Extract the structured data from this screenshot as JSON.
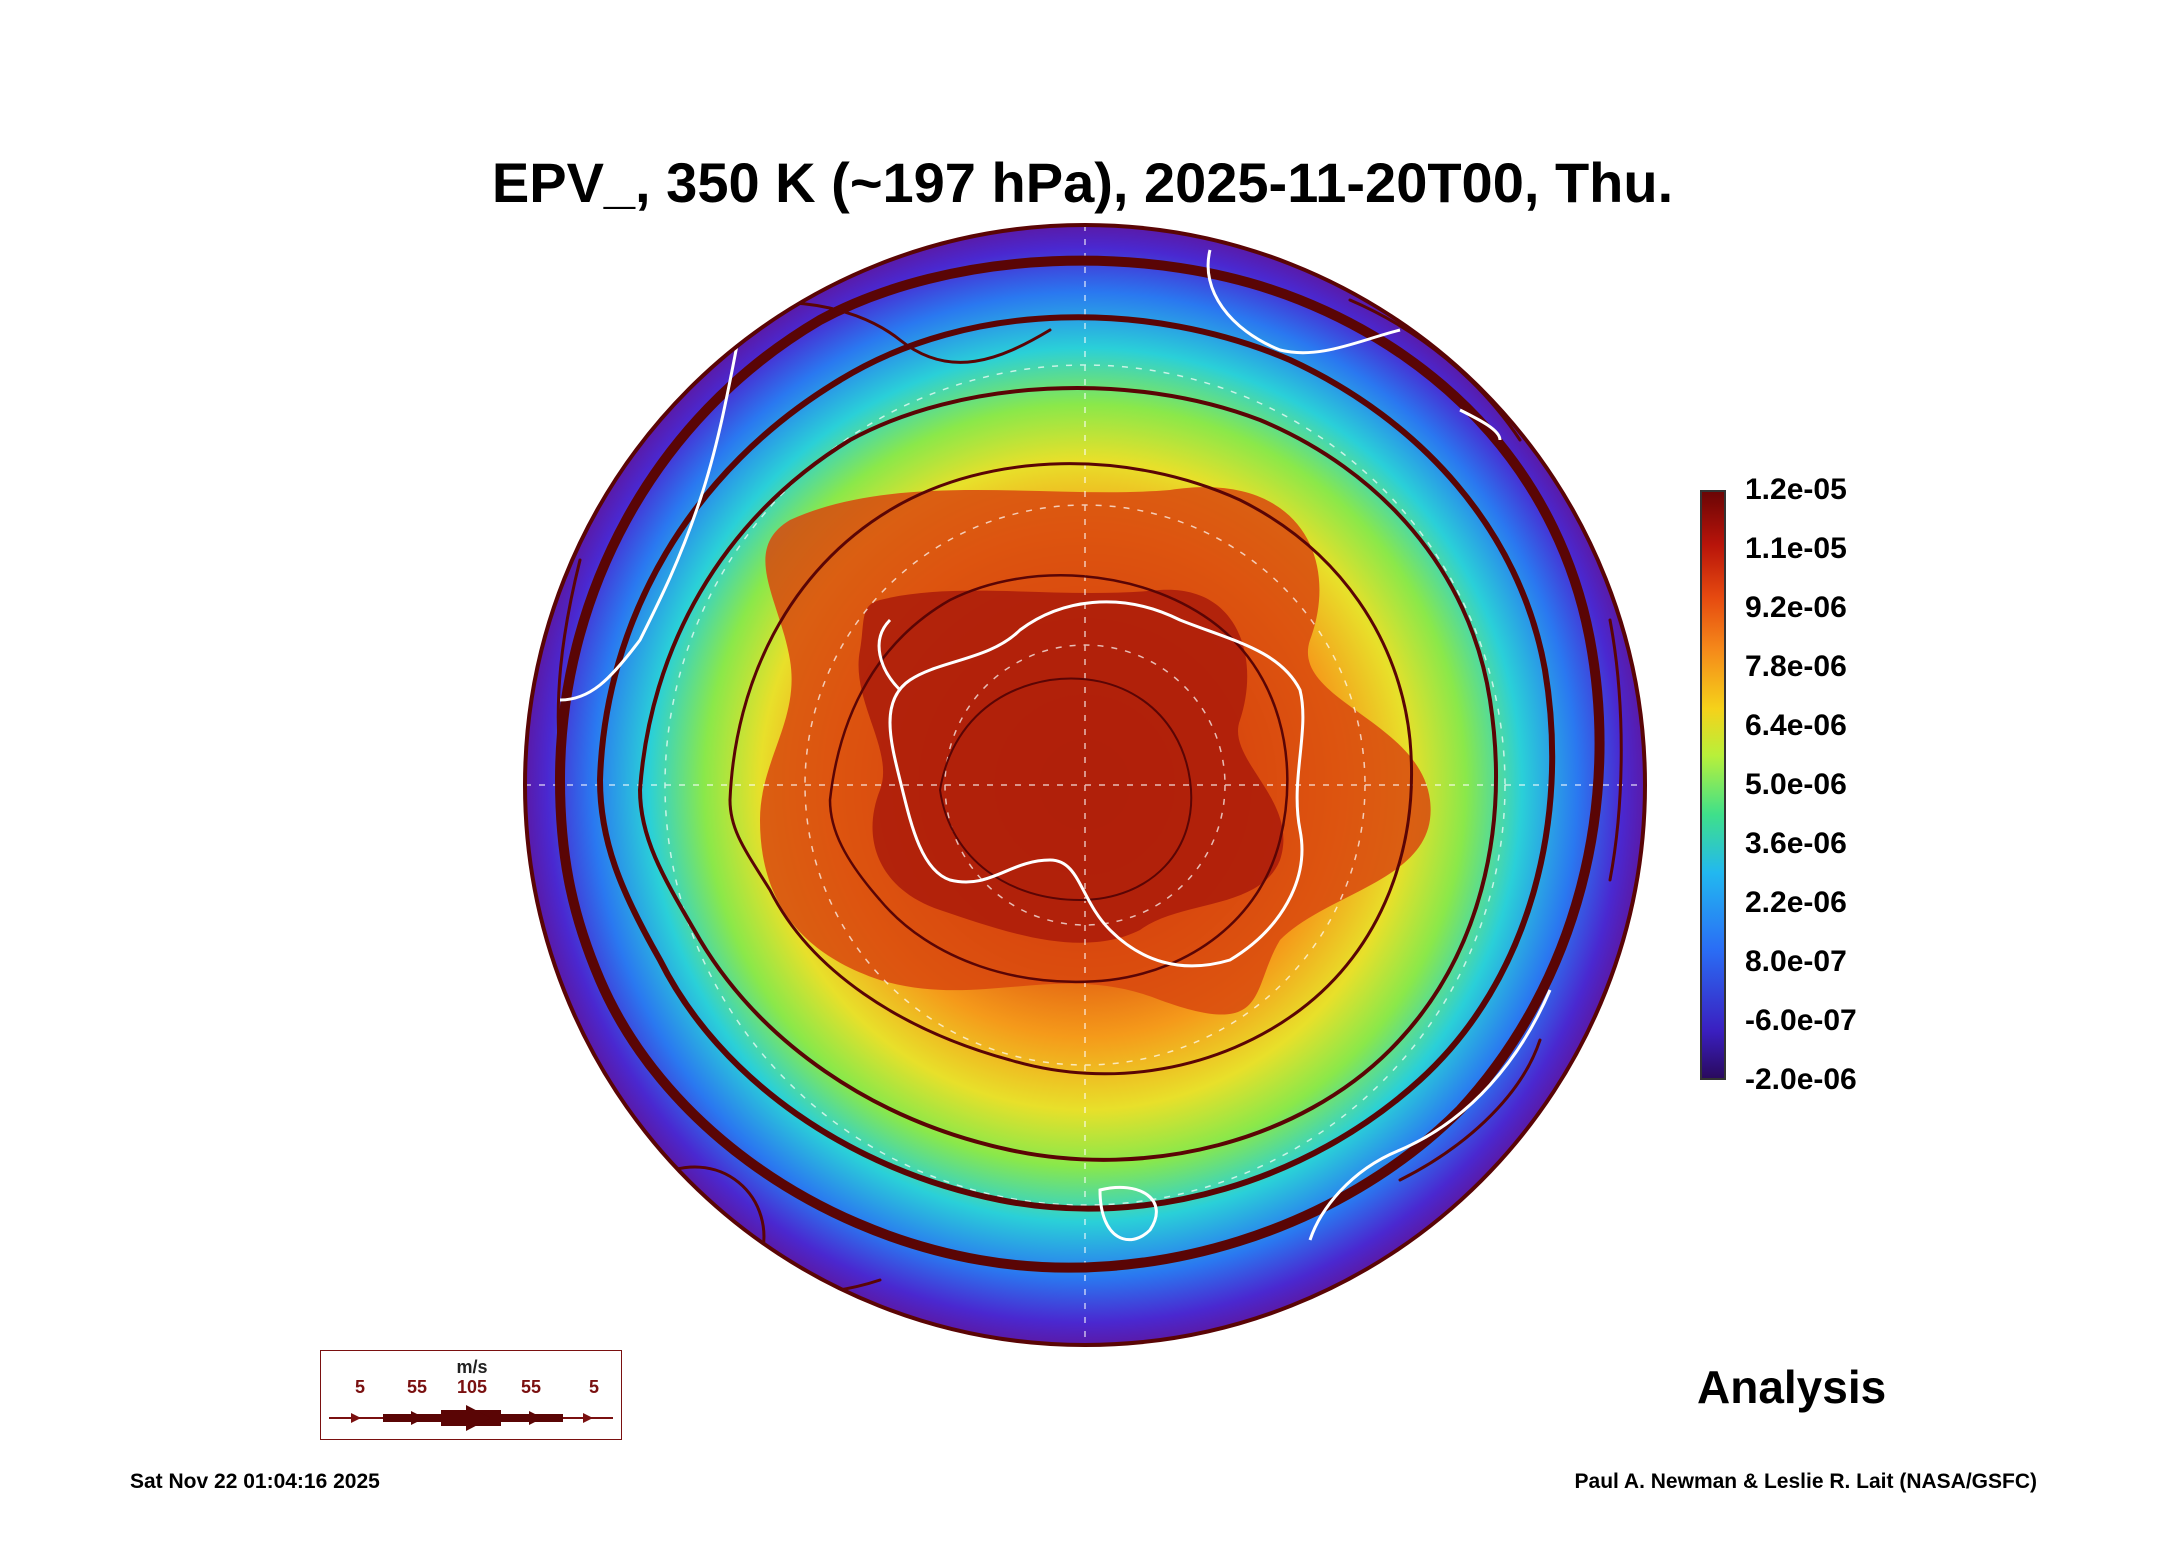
{
  "title": "EPV_, 350 K (~197 hPa), 2025-11-20T00, Thu.",
  "colorbar": {
    "labels": [
      "1.2e-05",
      "1.1e-05",
      "9.2e-06",
      "7.8e-06",
      "6.4e-06",
      "5.0e-06",
      "3.6e-06",
      "2.2e-06",
      "8.0e-07",
      "-6.0e-07",
      "-2.0e-06"
    ]
  },
  "legend": {
    "unit": "m/s",
    "values": [
      "5",
      "55",
      "105",
      "55",
      "5"
    ]
  },
  "label_analysis": "Analysis",
  "datestamp": "Sat Nov 22 01:04:16 2025",
  "credit": "Paul A. Newman & Leslie R. Lait (NASA/GSFC)",
  "colors": {
    "high": "#a01008",
    "mid": "#f5b81a",
    "low": "#3a2fd8",
    "streamline": "#5a0505",
    "coast": "#ffffff"
  }
}
